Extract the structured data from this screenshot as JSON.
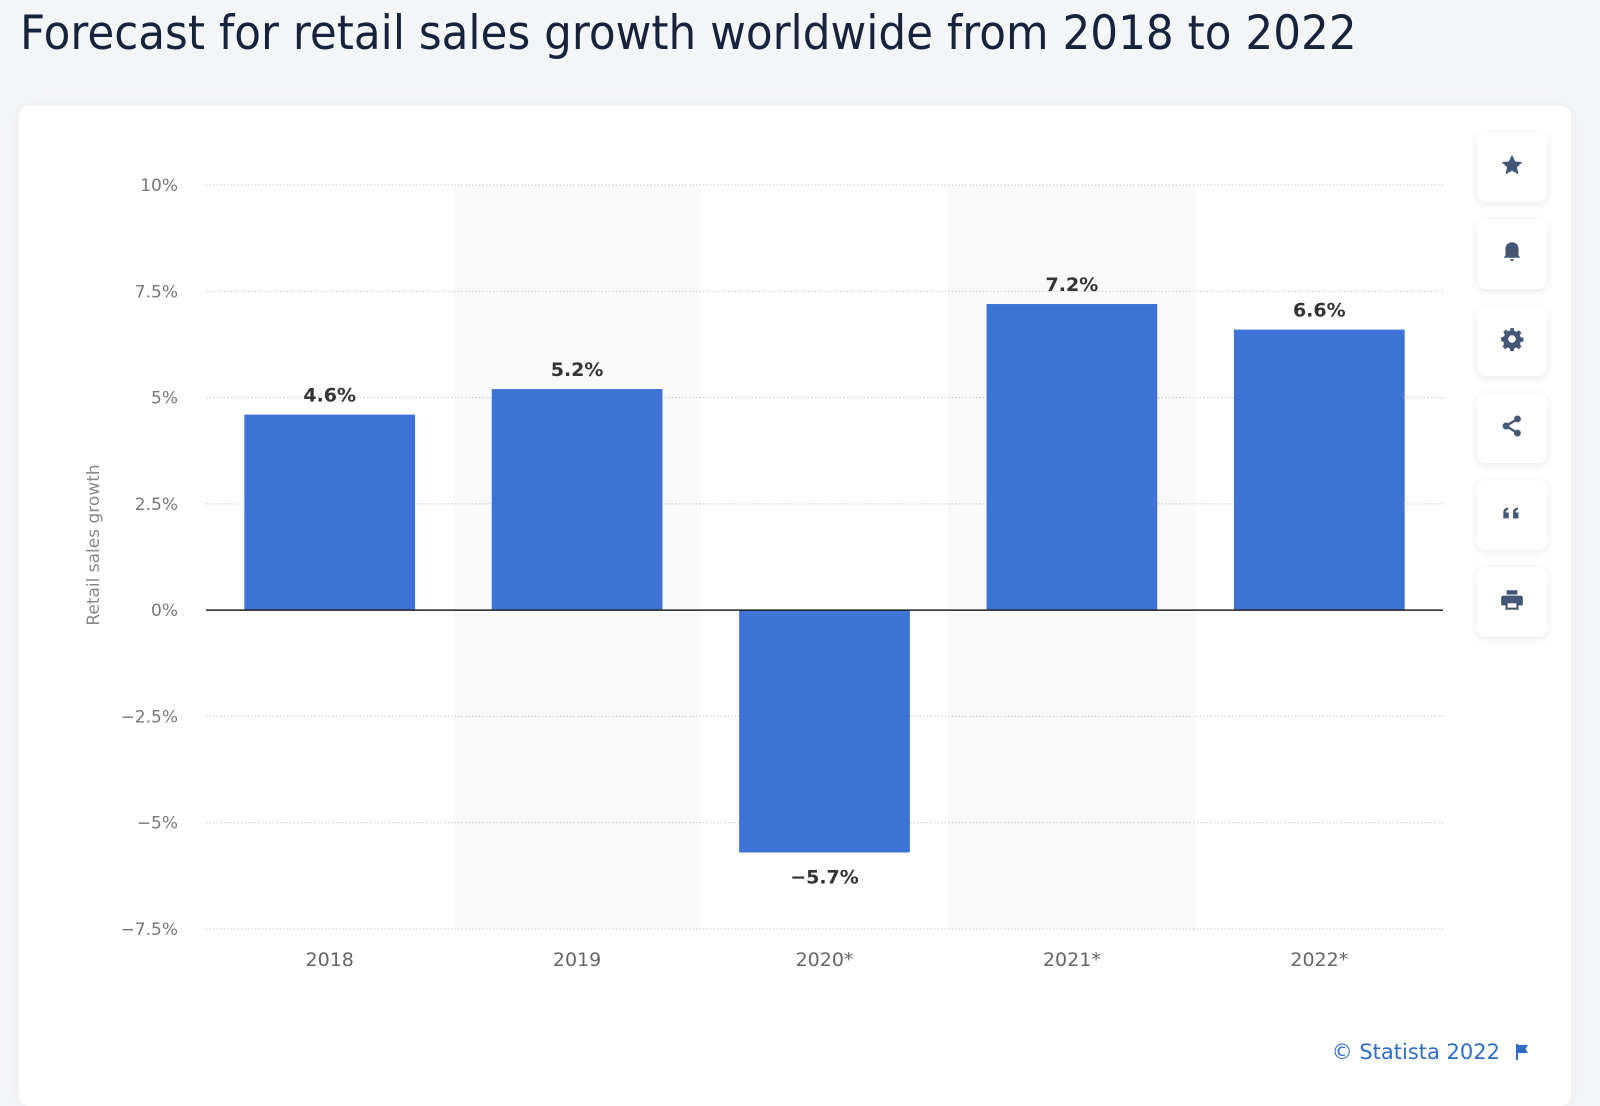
{
  "page": {
    "title": "Forecast for retail sales growth worldwide from 2018 to 2022"
  },
  "toolbar": {
    "buttons": [
      {
        "name": "favorite",
        "icon": "star-icon"
      },
      {
        "name": "notify",
        "icon": "bell-icon"
      },
      {
        "name": "settings",
        "icon": "gear-icon"
      },
      {
        "name": "share",
        "icon": "share-icon"
      },
      {
        "name": "cite",
        "icon": "quote-icon"
      },
      {
        "name": "print",
        "icon": "printer-icon"
      }
    ]
  },
  "footer": {
    "copyright": "© Statista 2022",
    "flag_icon": "flag-icon"
  },
  "colors": {
    "bar": "#3d73d6",
    "title": "#17233d",
    "axis_text": "#777777",
    "label_text": "#333333",
    "band": "#f9f9f9",
    "footer_link": "#2f6ec5"
  },
  "chart_data": {
    "type": "bar",
    "title": "Forecast for retail sales growth worldwide from 2018 to 2022",
    "xlabel": "",
    "ylabel": "Retail sales growth",
    "categories": [
      "2018",
      "2019",
      "2020*",
      "2021*",
      "2022*"
    ],
    "values": [
      4.6,
      5.2,
      -5.7,
      7.2,
      6.6
    ],
    "data_labels": [
      "4.6%",
      "5.2%",
      "−5.7%",
      "7.2%",
      "6.6%"
    ],
    "ylim": [
      -7.5,
      10
    ],
    "yticks": [
      10,
      7.5,
      5,
      2.5,
      0,
      -2.5,
      -5,
      -7.5
    ],
    "ytick_labels": [
      "10%",
      "7.5%",
      "5%",
      "2.5%",
      "0%",
      "−2.5%",
      "−5%",
      "−7.5%"
    ],
    "grid": true,
    "legend": "none",
    "unit": "%"
  }
}
